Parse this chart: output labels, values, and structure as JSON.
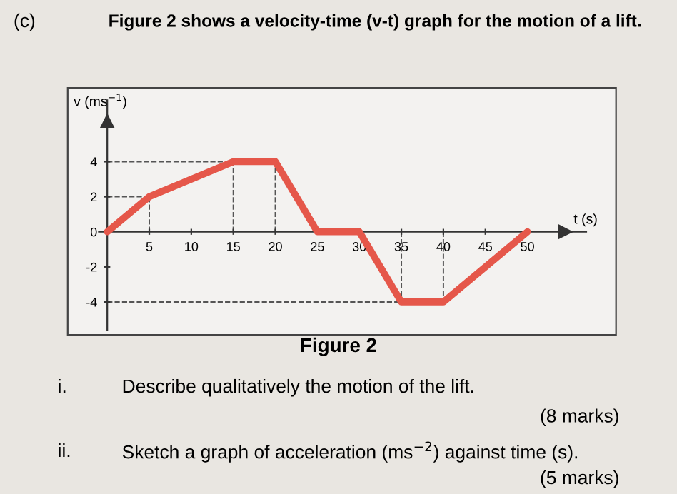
{
  "chart_data": {
    "type": "line",
    "title": "Figure 2 shows a velocity-time (v-t) graph for the motion of a lift.",
    "xlabel": "t (s)",
    "ylabel": "v (ms$^{−1}$)",
    "series": [
      {
        "color": "#e5574a",
        "x": [
          0,
          5,
          15,
          20,
          25,
          30,
          35,
          40,
          50
        ],
        "values": [
          0,
          2,
          4,
          4,
          0,
          0,
          -4,
          -4,
          0
        ]
      }
    ],
    "xlim": [
      -1,
      57
    ],
    "ylim": [
      -5.6,
      7.5
    ],
    "xticks": [
      5,
      10,
      15,
      20,
      25,
      30,
      35,
      40,
      45,
      50
    ],
    "yticks": [
      -4,
      -2,
      0,
      2,
      4
    ],
    "ref_lines": [
      {
        "axis": "y",
        "value": 4,
        "line_style": "dashed",
        "color": "#555555"
      },
      {
        "axis": "y",
        "value": 2,
        "line_style": "dashed",
        "color": "#555555"
      },
      {
        "axis": "y",
        "value": -4,
        "line_style": "dashed",
        "color": "#555555"
      },
      {
        "axis": "x",
        "value": 5,
        "line_style": "dashed",
        "color": "#555555"
      },
      {
        "axis": "x",
        "value": 15,
        "line_style": "dashed",
        "color": "#555555"
      },
      {
        "axis": "x",
        "value": 20,
        "line_style": "dashed",
        "color": "#555555"
      },
      {
        "axis": "x",
        "value": 35,
        "line_style": "dashed",
        "color": "#555555"
      },
      {
        "axis": "x",
        "value": 40,
        "line_style": "dashed",
        "color": "#555555"
      }
    ],
    "grid": false,
    "legend": false,
    "marker": "none",
    "line_style": "solid",
    "annotations": [
      "(c)",
      "Figure 2",
      "i.",
      "Describe qualitatively the motion of the lift.",
      "(8 marks)",
      "ii.",
      "Sketch a graph of acceleration (ms$^{−2}$) against time (s).",
      "(5 marks)"
    ]
  }
}
